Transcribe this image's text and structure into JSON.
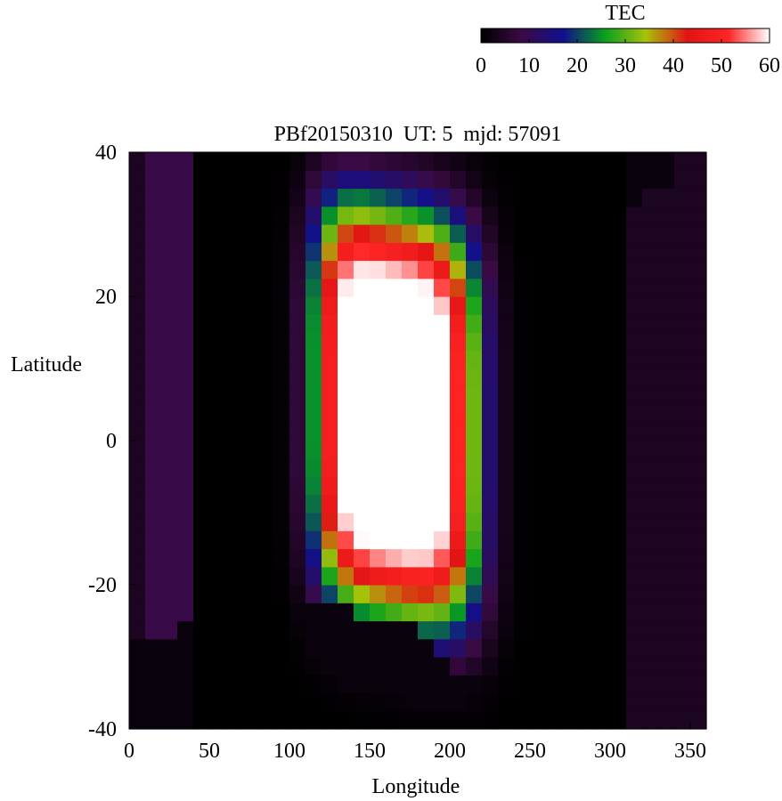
{
  "chart_data": {
    "type": "heatmap",
    "title": "PBf20150310  UT: 5  mjd: 57091",
    "xlabel": "Longitude",
    "ylabel": "Latitude",
    "xlim": [
      0,
      360
    ],
    "ylim": [
      -40,
      40
    ],
    "x_ticks": [
      "0",
      "50",
      "100",
      "150",
      "200",
      "250",
      "300",
      "350"
    ],
    "y_ticks": [
      "40",
      "20",
      "0",
      "-20",
      "-40"
    ],
    "colorbar": {
      "label": "TEC",
      "range": [
        0,
        60
      ],
      "ticks": [
        "0",
        "10",
        "20",
        "30",
        "40",
        "50",
        "60"
      ],
      "palette": [
        "#000000",
        "#3a0a44",
        "#10108e",
        "#07a01e",
        "#a8c20a",
        "#e21414",
        "#ff2424",
        "#ffffff"
      ]
    },
    "longitude_step_deg": 10,
    "latitude_step_deg": 2.5,
    "features": {
      "peak_tec": 60,
      "peak_center": {
        "longitude": 165,
        "latitude": 4
      },
      "peak_extent_longitude": [
        130,
        210
      ],
      "peak_extent_latitude": [
        -14,
        22
      ],
      "night_region_tec": 0,
      "north_low_edge_latitude": 25,
      "south_low_edge_latitude": -23
    }
  }
}
